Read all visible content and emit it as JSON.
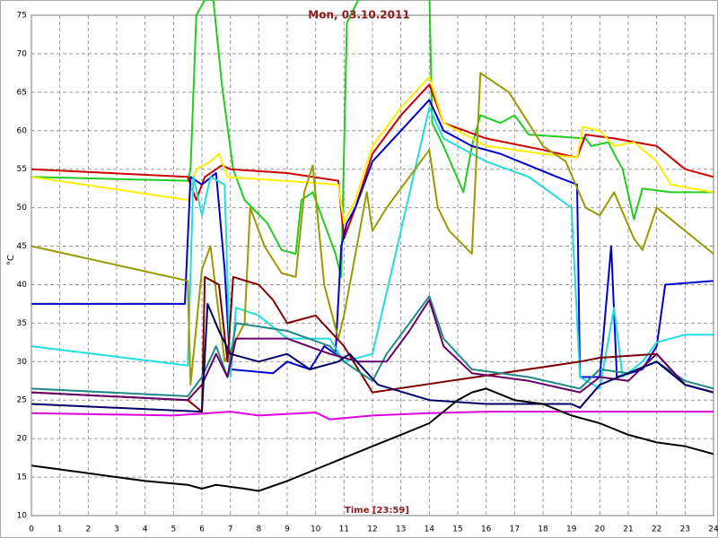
{
  "chart_data": {
    "type": "line",
    "title": "Mon, 03.10.2011",
    "x_label": "Time [23:59]",
    "y_label": "°C",
    "xlim": [
      0,
      24
    ],
    "xticks": [
      0,
      1,
      2,
      3,
      4,
      5,
      6,
      7,
      8,
      9,
      10,
      11,
      12,
      13,
      14,
      15,
      16,
      17,
      18,
      19,
      20,
      21,
      22,
      23,
      24
    ],
    "ylim": [
      10,
      75
    ],
    "yticks": [
      10,
      15,
      20,
      25,
      30,
      35,
      40,
      45,
      50,
      55,
      60,
      65,
      70,
      75
    ],
    "grid": true,
    "series": [
      {
        "color": "#22cc22",
        "x": [
          0,
          5.5,
          5.6,
          5.8,
          6.1,
          6.4,
          6.7,
          7.1,
          7.5,
          8.3,
          8.8,
          9.3,
          9.5,
          9.9,
          10.3,
          10.7,
          10.9,
          11.1,
          11.5,
          12.5,
          14,
          14.1,
          14.5,
          15.2,
          15.5,
          15.8,
          16.5,
          17,
          17.5,
          19.5,
          19.7,
          20.3,
          20.5,
          20.8,
          21.2,
          21.5,
          22.5,
          24
        ],
        "values": [
          54,
          53.5,
          55,
          75,
          77,
          77,
          66,
          55,
          51,
          48,
          44.5,
          44,
          51,
          52,
          48,
          44,
          41,
          74,
          77,
          78,
          78.5,
          61,
          58,
          52,
          58,
          62,
          61,
          62,
          59.5,
          59,
          58,
          58.5,
          57,
          55,
          48.5,
          52.5,
          52,
          52
        ]
      },
      {
        "color": "#cc0000",
        "x": [
          0,
          5.5,
          5.8,
          6.1,
          6.7,
          7,
          9,
          10.8,
          11,
          11.4,
          12,
          13,
          14,
          14.5,
          16,
          18,
          19.2,
          19.5,
          20.5,
          22,
          23,
          24
        ],
        "values": [
          55,
          54,
          51,
          54,
          55.5,
          55,
          54.5,
          53.5,
          46,
          50,
          57,
          62,
          66,
          61,
          59,
          57.5,
          56.5,
          59.5,
          59,
          58,
          55,
          54
        ]
      },
      {
        "color": "#ffee00",
        "x": [
          0,
          5.5,
          5.8,
          6.3,
          6.6,
          6.9,
          10.8,
          11,
          11.4,
          12,
          13,
          14,
          14.5,
          16,
          18,
          19.2,
          19.4,
          20,
          20.5,
          21.2,
          22,
          22.5,
          24
        ],
        "values": [
          54,
          51,
          55,
          56,
          57,
          54,
          53,
          48,
          51,
          58,
          63,
          67,
          61,
          58,
          57,
          56.5,
          60.5,
          60,
          58,
          58.5,
          56,
          53,
          52
        ]
      },
      {
        "color": "#0000cc",
        "x": [
          0,
          5.4,
          5.6,
          6,
          6.5,
          6.8,
          7,
          8.5,
          9,
          9.8,
          10.3,
          10.7,
          10.9,
          11.1,
          11.4,
          12,
          13,
          14,
          14.5,
          15.5,
          16.5,
          17.5,
          18.5,
          19.2,
          19.3,
          20,
          20.4,
          20.6,
          21.5,
          22,
          22.3,
          24
        ],
        "values": [
          37.5,
          37.5,
          54,
          53,
          54.5,
          42,
          29,
          28.5,
          30,
          29,
          32,
          31,
          45,
          48,
          50,
          56,
          60,
          64,
          60,
          58,
          57,
          55.5,
          54,
          53,
          28,
          28,
          45,
          28,
          29,
          32,
          40,
          40.5
        ]
      },
      {
        "color": "#22dddd",
        "x": [
          0,
          5.5,
          5.7,
          6,
          6.3,
          6.8,
          7,
          7.2,
          8,
          9,
          10.5,
          11,
          12,
          13.5,
          14,
          14.5,
          16,
          17.5,
          19,
          19.3,
          20,
          20.5,
          20.8,
          21.5,
          22,
          23,
          24
        ],
        "values": [
          32,
          29.5,
          54,
          49,
          54,
          53,
          28,
          37,
          36,
          33,
          33,
          30,
          31,
          55,
          63,
          59,
          56,
          54,
          50,
          28,
          26.5,
          37,
          28,
          30,
          32.5,
          33.5,
          33.5
        ]
      },
      {
        "color": "#999900",
        "x": [
          0,
          5.5,
          5.6,
          6,
          6.3,
          6.8,
          7.5,
          7.7,
          8.2,
          8.8,
          9.3,
          9.6,
          9.9,
          10.3,
          10.8,
          11,
          11.5,
          11.8,
          12,
          12.5,
          13.3,
          14,
          14.3,
          14.7,
          15.5,
          15.8,
          16.8,
          18,
          18.8,
          19.5,
          20,
          20.5,
          21.2,
          21.5,
          22,
          23,
          24
        ],
        "values": [
          45,
          40.5,
          27,
          42,
          45,
          30,
          35,
          50,
          45,
          41.5,
          41,
          52,
          55.5,
          40,
          33,
          36,
          46,
          52,
          47,
          50,
          54,
          57.5,
          50,
          47,
          44,
          67.5,
          65,
          58,
          56,
          50,
          49,
          52,
          46,
          44.5,
          50,
          47,
          44
        ]
      },
      {
        "color": "#800000",
        "x": [
          0,
          5.5,
          6,
          6.1,
          6.6,
          6.9,
          7.1,
          8,
          8.5,
          9,
          10,
          11,
          12,
          19.3,
          20,
          22,
          23,
          24
        ],
        "values": [
          26,
          25,
          23.5,
          41,
          40,
          30,
          41,
          40,
          38,
          35,
          36,
          32,
          26,
          30,
          30.5,
          31,
          27,
          26
        ]
      },
      {
        "color": "#228888",
        "x": [
          0,
          5.5,
          6,
          6.5,
          6.9,
          7.2,
          9,
          10.5,
          11,
          12,
          12.5,
          13.3,
          14,
          14.5,
          15.5,
          17.5,
          19.3,
          20,
          21,
          22,
          23,
          24
        ],
        "values": [
          26.5,
          25.5,
          28,
          32,
          28,
          35,
          34,
          32,
          30,
          27.5,
          31,
          35,
          38.5,
          33,
          29,
          28,
          26.5,
          29,
          28.5,
          30,
          27.5,
          26.5
        ]
      },
      {
        "color": "#660066",
        "x": [
          0,
          5.5,
          6,
          6.5,
          6.9,
          7.2,
          9,
          10.5,
          11.5,
          12.5,
          13.3,
          14,
          14.5,
          15.5,
          17.5,
          19.3,
          20,
          21,
          22,
          23,
          24
        ],
        "values": [
          26,
          25,
          27,
          31,
          28,
          33,
          33,
          31,
          30,
          30,
          34,
          38,
          32,
          28.5,
          27.5,
          26,
          28,
          27.5,
          31,
          27,
          26
        ]
      },
      {
        "color": "#000066",
        "x": [
          0,
          6,
          6.2,
          6.6,
          7,
          8,
          9,
          9.8,
          10.8,
          11.2,
          12.2,
          14,
          16,
          19,
          19.3,
          20,
          22,
          23,
          24
        ],
        "values": [
          24.5,
          23.5,
          37.5,
          34,
          31,
          30,
          31,
          29,
          30,
          31,
          27,
          25,
          24.5,
          24.5,
          24,
          27,
          30,
          27,
          26
        ]
      },
      {
        "color": "#dd00dd",
        "x": [
          0,
          5,
          7,
          8,
          10,
          10.5,
          12,
          14,
          16,
          24
        ],
        "values": [
          23.3,
          23,
          23.5,
          23,
          23.4,
          22.5,
          23,
          23.3,
          23.5,
          23.5
        ]
      },
      {
        "color": "#000000",
        "x": [
          0,
          2,
          4,
          5.5,
          6,
          6.5,
          7.5,
          8,
          9,
          10,
          11,
          12,
          13,
          14,
          15,
          15.5,
          16,
          17,
          18,
          19,
          20,
          21,
          22,
          23,
          24
        ],
        "values": [
          16.5,
          15.5,
          14.5,
          14,
          13.5,
          14,
          13.5,
          13.2,
          14.5,
          16,
          17.5,
          19,
          20.5,
          22,
          25,
          26,
          26.5,
          25,
          24.5,
          23,
          22,
          20.5,
          19.5,
          19,
          18
        ]
      }
    ]
  }
}
